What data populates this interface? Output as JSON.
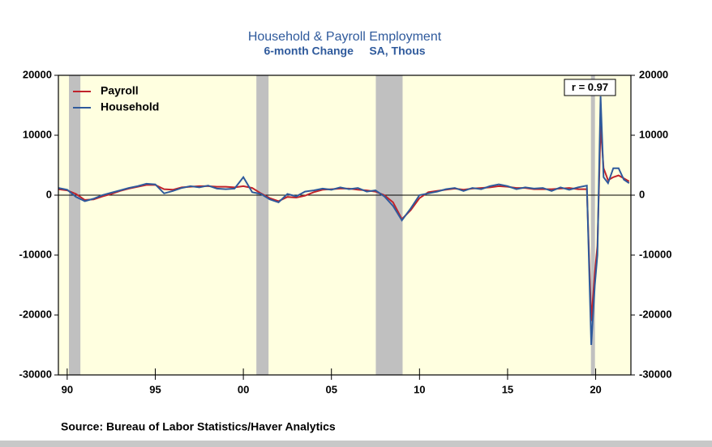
{
  "chart_data": {
    "type": "line",
    "title": "Household & Payroll Employment",
    "subtitle": "6-month Change     SA, Thous",
    "annotation": "r = 0.97",
    "source": "Source:  Bureau of Labor Statistics/Haver Analytics",
    "x": [
      1989.5,
      1990,
      1990.5,
      1991,
      1991.5,
      1992,
      1992.5,
      1993,
      1993.5,
      1994,
      1994.5,
      1995,
      1995.5,
      1996,
      1996.5,
      1997,
      1997.5,
      1998,
      1998.5,
      1999,
      1999.5,
      2000,
      2000.5,
      2001,
      2001.5,
      2002,
      2002.5,
      2003,
      2003.5,
      2004,
      2004.5,
      2005,
      2005.5,
      2006,
      2006.5,
      2007,
      2007.5,
      2008,
      2008.5,
      2009,
      2009.5,
      2010,
      2010.5,
      2011,
      2011.5,
      2012,
      2012.5,
      2013,
      2013.5,
      2014,
      2014.5,
      2015,
      2015.5,
      2016,
      2016.5,
      2017,
      2017.5,
      2018,
      2018.5,
      2019,
      2019.5,
      2019.75,
      2019.95,
      2020.1,
      2020.28,
      2020.45,
      2020.7,
      2021,
      2021.3,
      2021.6,
      2021.9
    ],
    "series": [
      {
        "name": "Payroll",
        "color": "#c0232b",
        "values": [
          1000,
          800,
          200,
          -800,
          -700,
          -200,
          200,
          700,
          1100,
          1400,
          1700,
          1700,
          1000,
          900,
          1300,
          1400,
          1500,
          1500,
          1400,
          1400,
          1300,
          1500,
          1200,
          300,
          -500,
          -1000,
          -300,
          -400,
          -100,
          500,
          900,
          1000,
          1100,
          1100,
          900,
          800,
          600,
          0,
          -1200,
          -4000,
          -2500,
          -500,
          500,
          700,
          900,
          1100,
          900,
          1100,
          1200,
          1300,
          1500,
          1400,
          1200,
          1200,
          1000,
          1000,
          1000,
          1100,
          1200,
          1000,
          1000,
          -21000,
          -13000,
          -8500,
          11600,
          4500,
          2500,
          3000,
          3300,
          2800,
          2300
        ]
      },
      {
        "name": "Household",
        "color": "#2f5a9c",
        "values": [
          1200,
          900,
          -300,
          -1000,
          -600,
          0,
          400,
          800,
          1200,
          1500,
          1900,
          1800,
          300,
          700,
          1200,
          1500,
          1300,
          1600,
          1100,
          1000,
          1100,
          3000,
          500,
          200,
          -700,
          -1200,
          200,
          -200,
          600,
          800,
          1100,
          900,
          1300,
          1000,
          1200,
          600,
          800,
          -200,
          -1800,
          -4200,
          -2200,
          0,
          300,
          600,
          1000,
          1200,
          700,
          1200,
          1000,
          1500,
          1800,
          1500,
          1000,
          1300,
          1100,
          1200,
          700,
          1300,
          900,
          1300,
          1600,
          -25000,
          -15000,
          -10000,
          16500,
          3000,
          2000,
          4500,
          4500,
          2600,
          2000
        ]
      }
    ],
    "shaded_periods": [
      [
        1990.1,
        1990.75
      ],
      [
        2000.74,
        2001.43
      ],
      [
        2007.52,
        2009.04
      ],
      [
        2019.73,
        2019.96
      ]
    ],
    "xlim": [
      1989.5,
      2022
    ],
    "xticks": [
      {
        "value": 1990,
        "label": "90"
      },
      {
        "value": 1995,
        "label": "95"
      },
      {
        "value": 2000,
        "label": "00"
      },
      {
        "value": 2005,
        "label": "05"
      },
      {
        "value": 2010,
        "label": "10"
      },
      {
        "value": 2015,
        "label": "15"
      },
      {
        "value": 2020,
        "label": "20"
      }
    ],
    "ylim": [
      -30000,
      20000
    ],
    "yticks": [
      20000,
      10000,
      0,
      -10000,
      -20000,
      -30000
    ],
    "y2lim": [
      -30000,
      20000
    ],
    "y2ticks": [
      20000,
      10000,
      0,
      -10000,
      -20000,
      -30000
    ],
    "legend": "upper left"
  }
}
